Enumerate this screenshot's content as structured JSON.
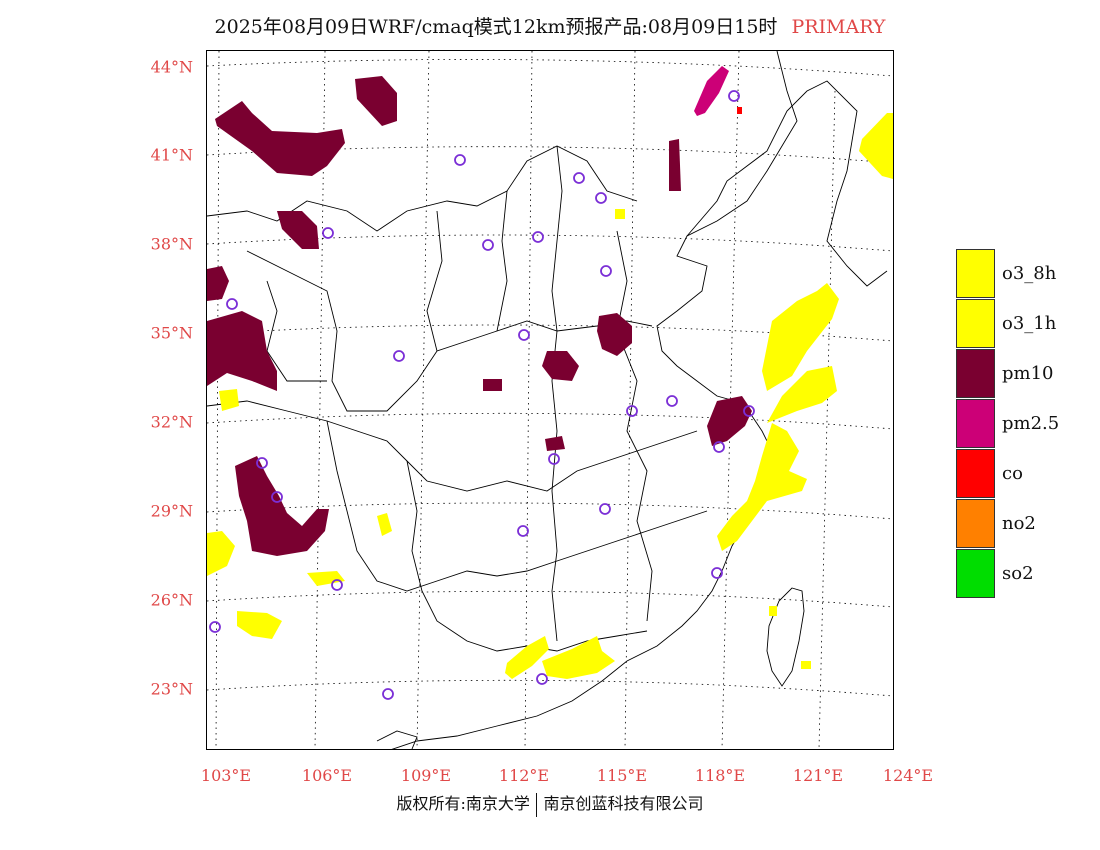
{
  "title": {
    "text": "2025年08月09日WRF/cmaq模式12km预报产品:08月09日15时",
    "tag": "PRIMARY"
  },
  "map": {
    "lat_labels": [
      "44°N",
      "41°N",
      "38°N",
      "35°N",
      "32°N",
      "29°N",
      "26°N",
      "23°N"
    ],
    "lon_labels": [
      "103°E",
      "106°E",
      "109°E",
      "112°E",
      "115°E",
      "118°E",
      "121°E",
      "124°E"
    ]
  },
  "legend": [
    {
      "label": "o3_8h",
      "color": "#ffff00"
    },
    {
      "label": "o3_1h",
      "color": "#ffff00"
    },
    {
      "label": "pm10",
      "color": "#7a0030"
    },
    {
      "label": "pm2.5",
      "color": "#cc0077"
    },
    {
      "label": "co",
      "color": "#ff0000"
    },
    {
      "label": "no2",
      "color": "#ff8000"
    },
    {
      "label": "so2",
      "color": "#00dd00"
    }
  ],
  "colors": {
    "label_red": "#e04848",
    "station_marker": "#7b2fd6",
    "border": "#000000"
  },
  "footer": {
    "left": "版权所有:南京大学",
    "right": "南京创蓝科技有限公司"
  }
}
